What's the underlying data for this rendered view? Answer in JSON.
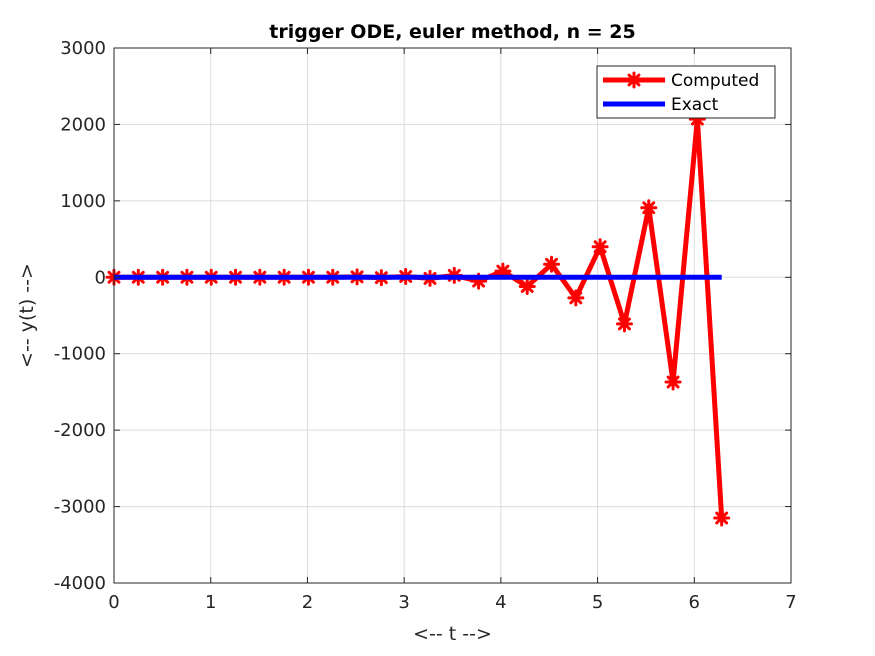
{
  "chart_data": {
    "type": "line",
    "title": "trigger ODE, euler method, n = 25",
    "xlabel": "<-- t -->",
    "ylabel": "<-- y(t) -->",
    "xlim": [
      0,
      7
    ],
    "ylim": [
      -4000,
      3000
    ],
    "xticks": [
      0,
      1,
      2,
      3,
      4,
      5,
      6,
      7
    ],
    "yticks": [
      -4000,
      -3000,
      -2000,
      -1000,
      0,
      1000,
      2000,
      3000
    ],
    "xtick_labels": [
      "0",
      "1",
      "2",
      "3",
      "4",
      "5",
      "6",
      "7"
    ],
    "ytick_labels": [
      "-4000",
      "-3000",
      "-2000",
      "-1000",
      "0",
      "1000",
      "2000",
      "3000"
    ],
    "grid": true,
    "legend_position": "top-right",
    "series": [
      {
        "name": "Computed",
        "color": "#ff0000",
        "marker": "asterisk",
        "x": [
          0,
          0.2513,
          0.5027,
          0.754,
          1.0053,
          1.2566,
          1.508,
          1.7593,
          2.0106,
          2.2619,
          2.5133,
          2.7646,
          3.0159,
          3.2673,
          3.5186,
          3.7699,
          4.0212,
          4.2726,
          4.5239,
          4.7752,
          5.0265,
          5.2779,
          5.5292,
          5.7805,
          6.0319,
          6.2832
        ],
        "y": [
          0,
          0,
          0,
          0,
          0,
          0,
          0,
          0,
          0,
          0,
          5,
          -5,
          10,
          -15,
          25,
          -50,
          80,
          -120,
          170,
          -270,
          400,
          -610,
          910,
          -1370,
          2070,
          -3150
        ]
      },
      {
        "name": "Exact",
        "color": "#0000ff",
        "marker": "none",
        "x": [
          0,
          6.2832
        ],
        "y": [
          0,
          0
        ]
      }
    ]
  }
}
